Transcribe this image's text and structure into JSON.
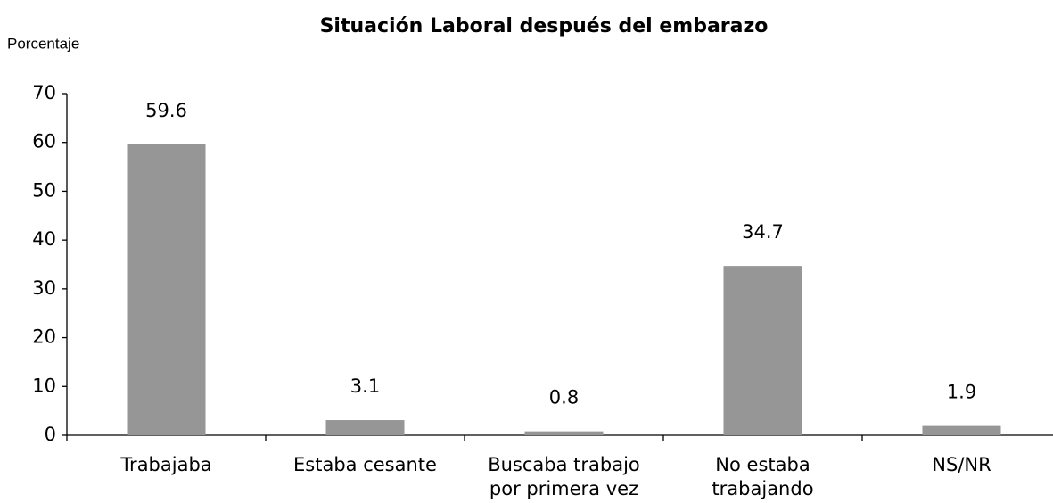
{
  "chart_data": {
    "type": "bar",
    "title": "Situación Laboral después del embarazo",
    "y_label": "Porcentaje",
    "categories": [
      [
        "Trabajaba"
      ],
      [
        "Estaba cesante"
      ],
      [
        "Buscaba trabajo",
        "por primera vez"
      ],
      [
        "No estaba",
        "trabajando"
      ],
      [
        "NS/NR"
      ]
    ],
    "values": [
      59.6,
      3.1,
      0.8,
      34.7,
      1.9
    ],
    "color": "#969696",
    "ylim": [
      0,
      70
    ],
    "yticks": [
      0,
      10,
      20,
      30,
      40,
      50,
      60,
      70
    ],
    "grid": false
  }
}
